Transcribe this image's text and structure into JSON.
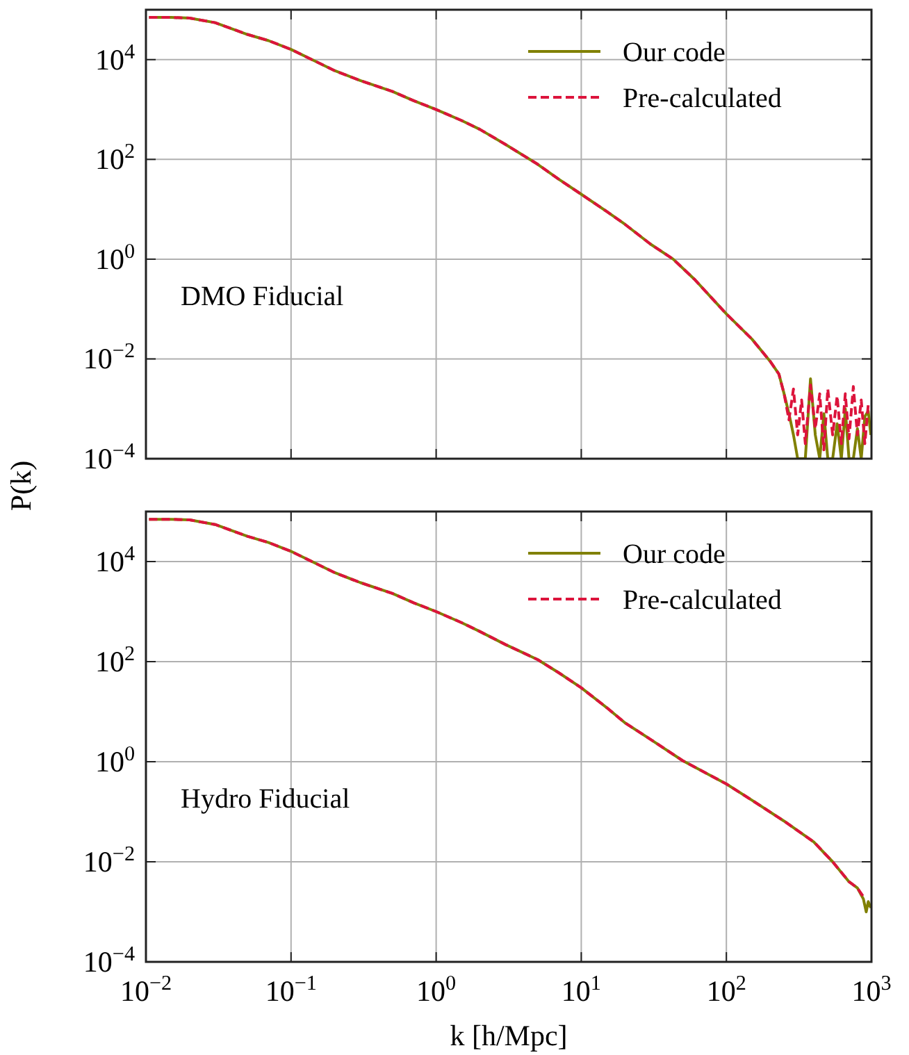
{
  "chart_data": [
    {
      "type": "line",
      "ylabel": "P(k)",
      "annotations": [
        "DMO Fiducial"
      ],
      "log": "xy",
      "grid": true,
      "legend": "top right",
      "tick_labels": "y",
      "xlim": [
        0.01,
        1000
      ],
      "xticks": [
        0.01,
        0.1,
        1,
        10,
        100,
        1000
      ],
      "ylim": [
        0.0001,
        100000
      ],
      "yticks": [
        {
          "value": 0.0001,
          "label": "10$^{−4}$"
        },
        {
          "value": 0.01,
          "label": "10$^{−2}$"
        },
        {
          "value": 1,
          "label": "10$^{0}$"
        },
        {
          "value": 100,
          "label": "10$^{2}$"
        },
        {
          "value": 10000,
          "label": "10$^{4}$"
        }
      ],
      "x": [
        0.0105,
        0.015,
        0.02,
        0.03,
        0.05,
        0.07,
        0.1,
        0.15,
        0.2,
        0.3,
        0.5,
        0.7,
        1,
        1.5,
        2,
        3,
        5,
        7,
        10,
        15,
        20,
        30,
        43,
        60,
        100,
        150,
        200,
        230,
        250,
        270,
        290,
        310,
        330,
        350,
        380,
        410,
        440,
        470,
        500,
        540,
        580,
        620,
        660,
        700,
        750,
        800,
        850,
        900,
        950,
        990
      ],
      "series": [
        {
          "name": "Our code",
          "color": "#808000",
          "line_style": "solid",
          "values": [
            70000,
            70000,
            68000,
            55000,
            32000,
            24000,
            16000,
            9000,
            6000,
            3800,
            2300,
            1500,
            1000,
            600,
            400,
            200,
            80,
            40,
            20,
            9,
            5,
            2,
            1,
            0.4,
            0.08,
            0.025,
            0.009,
            0.005,
            0.002,
            0.0008,
            0.0003,
            0.0001,
            0.0001,
            0.0001,
            0.004,
            0.0003,
            0.0001,
            0.0008,
            0.0001,
            0.0001,
            0.0005,
            0.0001,
            0.001,
            0.0001,
            0.0001,
            0.0004,
            0.0001,
            0.0007,
            0.0009,
            0.0003
          ]
        },
        {
          "name": "Pre-calculated",
          "color": "#dc143c",
          "line_style": "dashed",
          "values": [
            70000,
            70000,
            68000,
            55000,
            32000,
            24000,
            16000,
            9000,
            6000,
            3800,
            2300,
            1500,
            1000,
            600,
            400,
            200,
            80,
            40,
            20,
            9,
            5,
            2,
            1,
            0.4,
            0.08,
            0.025,
            0.009,
            0.005,
            0.002,
            0.0006,
            0.0025,
            0.0003,
            0.0015,
            0.0002,
            0.003,
            0.0004,
            0.002,
            0.00015,
            0.0025,
            0.0003,
            0.0018,
            0.0002,
            0.002,
            0.00025,
            0.0028,
            0.0003,
            0.0015,
            0.0002,
            0.0012,
            null
          ]
        }
      ]
    },
    {
      "type": "line",
      "xlabel": "k [h/Mpc]",
      "annotations": [
        "Hydro Fiducial"
      ],
      "log": "xy",
      "grid": true,
      "legend": "top right",
      "xlim": [
        0.01,
        1000
      ],
      "xticks": [
        {
          "value": 0.01,
          "label": "10$^{−2}$"
        },
        {
          "value": 0.1,
          "label": "10$^{−1}$"
        },
        {
          "value": 1,
          "label": "10$^{0}$"
        },
        {
          "value": 10,
          "label": "10$^{1}$"
        },
        {
          "value": 100,
          "label": "10$^{2}$"
        },
        {
          "value": 1000,
          "label": "10$^{3}$"
        }
      ],
      "ylim": [
        0.0001,
        100000
      ],
      "yticks": [
        {
          "value": 0.0001,
          "label": "10$^{−4}$"
        },
        {
          "value": 0.01,
          "label": "10$^{−2}$"
        },
        {
          "value": 1,
          "label": "10$^{0}$"
        },
        {
          "value": 100,
          "label": "10$^{2}$"
        },
        {
          "value": 10000,
          "label": "10$^{4}$"
        }
      ],
      "x": [
        0.0105,
        0.015,
        0.02,
        0.03,
        0.05,
        0.07,
        0.1,
        0.15,
        0.2,
        0.3,
        0.5,
        0.7,
        1,
        1.5,
        2,
        3,
        5,
        7,
        10,
        15,
        20,
        30,
        50,
        100,
        150,
        250,
        400,
        540,
        700,
        800,
        880,
        920,
        950,
        990
      ],
      "series": [
        {
          "name": "Our code",
          "color": "#808000",
          "line_style": "solid",
          "values": [
            70000,
            70000,
            68000,
            55000,
            32000,
            24000,
            16000,
            9000,
            6000,
            3800,
            2300,
            1500,
            1000,
            600,
            400,
            220,
            110,
            60,
            30,
            12,
            6,
            2.8,
            1.05,
            0.36,
            0.17,
            0.065,
            0.025,
            0.01,
            0.004,
            0.003,
            0.0018,
            0.001,
            0.0016,
            0.0012
          ]
        },
        {
          "name": "Pre-calculated",
          "color": "#dc143c",
          "line_style": "dashed",
          "values": [
            70000,
            70000,
            68000,
            55000,
            32000,
            24000,
            16000,
            9000,
            6000,
            3800,
            2300,
            1500,
            1000,
            600,
            400,
            220,
            110,
            60,
            30,
            12,
            6,
            2.8,
            1.05,
            0.36,
            0.17,
            0.065,
            0.025,
            0.01,
            0.004,
            0.003,
            0.002,
            null,
            null,
            null
          ]
        }
      ]
    }
  ]
}
